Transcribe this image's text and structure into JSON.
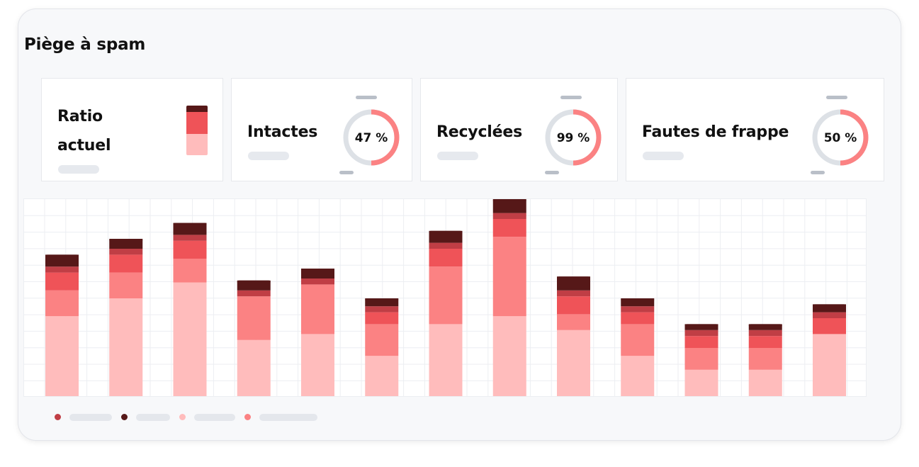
{
  "title": "Piège à spam",
  "colors": {
    "darkest": "#561818",
    "dark": "#c03e45",
    "medium": "#ef5358",
    "light": "#fb8283",
    "lightest": "#ffbcbc",
    "track": "#dde1e6"
  },
  "cards": {
    "ratio": {
      "label_line1": "Ratio",
      "label_line2": "actuel"
    },
    "intactes": {
      "label": "Intactes",
      "percent": 47,
      "percent_text": "47 %"
    },
    "recyclees": {
      "label": "Recyclées",
      "percent": 99,
      "percent_text": "99 %"
    },
    "fautes": {
      "label": "Fautes de frappe",
      "percent": 50,
      "percent_text": "50 %"
    }
  },
  "chart_data": {
    "type": "bar",
    "stacked": true,
    "grid": true,
    "series_colors": [
      "#ffbcbc",
      "#fb8283",
      "#ef5358",
      "#c03e45",
      "#561818"
    ],
    "series": [
      {
        "values": [
          41,
          50,
          58,
          29,
          32,
          21,
          37,
          41,
          34,
          21,
          14,
          14,
          32
        ]
      },
      {
        "values": [
          13,
          13,
          12,
          22,
          25,
          16,
          29,
          40,
          8,
          16,
          11,
          11,
          0
        ]
      },
      {
        "values": [
          9,
          9,
          9,
          0,
          0,
          6,
          9,
          9,
          9,
          6,
          6,
          6,
          8
        ]
      },
      {
        "values": [
          3,
          3,
          3,
          3,
          3,
          3,
          3,
          3,
          3,
          3,
          3,
          3,
          3
        ]
      },
      {
        "values": [
          6,
          5,
          6,
          5,
          5,
          4,
          6,
          7,
          7,
          4,
          3,
          3,
          4
        ]
      }
    ],
    "ylim": [
      0,
      100
    ]
  },
  "legend": [
    {
      "color": "#c03e45"
    },
    {
      "color": "#561818"
    },
    {
      "color": "#ffbcbc"
    },
    {
      "color": "#fb8283"
    }
  ]
}
